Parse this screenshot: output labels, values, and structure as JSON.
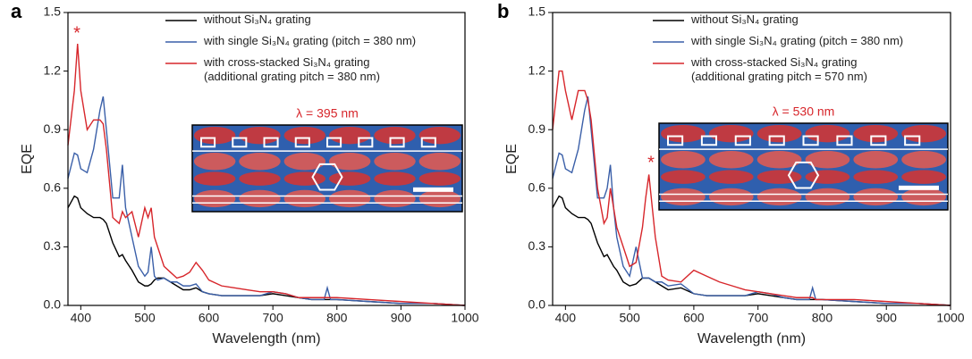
{
  "chart_data": [
    {
      "type": "line",
      "panel": "a",
      "xlabel": "Wavelength (nm)",
      "ylabel": "EQE",
      "xlim": [
        380,
        1000
      ],
      "ylim": [
        0,
        1.5
      ],
      "xticks": [
        400,
        500,
        600,
        700,
        800,
        900,
        1000
      ],
      "yticks": [
        {
          "value": 0,
          "label": "0.0"
        },
        0.3,
        0.6,
        0.9,
        1.2,
        1.5
      ],
      "annotations": [
        "*",
        "λ = 395 nm"
      ],
      "x": [
        380,
        390,
        395,
        400,
        410,
        420,
        430,
        435,
        440,
        450,
        460,
        465,
        470,
        480,
        490,
        500,
        505,
        510,
        515,
        520,
        530,
        540,
        550,
        560,
        570,
        580,
        590,
        600,
        620,
        640,
        660,
        680,
        700,
        720,
        740,
        760,
        780,
        785,
        790,
        800,
        850,
        900,
        950,
        1000
      ],
      "series": [
        {
          "name": "without Si₃N₄ grating",
          "color": "#000000",
          "values": [
            0.5,
            0.56,
            0.55,
            0.5,
            0.47,
            0.45,
            0.45,
            0.44,
            0.42,
            0.32,
            0.25,
            0.26,
            0.23,
            0.18,
            0.12,
            0.1,
            0.1,
            0.11,
            0.13,
            0.14,
            0.14,
            0.12,
            0.1,
            0.08,
            0.08,
            0.09,
            0.07,
            0.06,
            0.05,
            0.05,
            0.05,
            0.05,
            0.06,
            0.05,
            0.04,
            0.03,
            0.03,
            0.03,
            0.03,
            0.03,
            0.02,
            0.01,
            0.01,
            0.0
          ]
        },
        {
          "name": "with single Si₃N₄ grating (pitch = 380 nm)",
          "color": "#3a5fa8",
          "values": [
            0.65,
            0.78,
            0.77,
            0.7,
            0.68,
            0.8,
            1.0,
            1.07,
            0.9,
            0.55,
            0.55,
            0.72,
            0.5,
            0.35,
            0.2,
            0.15,
            0.17,
            0.3,
            0.15,
            0.13,
            0.14,
            0.12,
            0.12,
            0.1,
            0.1,
            0.11,
            0.07,
            0.06,
            0.05,
            0.05,
            0.05,
            0.05,
            0.07,
            0.06,
            0.04,
            0.03,
            0.03,
            0.09,
            0.03,
            0.03,
            0.02,
            0.01,
            0.01,
            0.0
          ]
        },
        {
          "name": "with cross-stacked Si₃N₄ grating\n(additional grating pitch = 380 nm)",
          "color": "#d7262b",
          "values": [
            0.82,
            1.1,
            1.34,
            1.1,
            0.9,
            0.95,
            0.95,
            0.93,
            0.8,
            0.45,
            0.42,
            0.48,
            0.45,
            0.48,
            0.35,
            0.5,
            0.45,
            0.5,
            0.35,
            0.3,
            0.2,
            0.17,
            0.14,
            0.15,
            0.17,
            0.22,
            0.18,
            0.13,
            0.1,
            0.09,
            0.08,
            0.07,
            0.07,
            0.06,
            0.04,
            0.04,
            0.04,
            0.04,
            0.04,
            0.04,
            0.03,
            0.02,
            0.01,
            0.0
          ]
        }
      ]
    },
    {
      "type": "line",
      "panel": "b",
      "xlabel": "Wavelength (nm)",
      "ylabel": "EQE",
      "xlim": [
        380,
        1000
      ],
      "ylim": [
        0,
        1.5
      ],
      "xticks": [
        400,
        500,
        600,
        700,
        800,
        900,
        1000
      ],
      "yticks": [
        {
          "value": 0,
          "label": "0.0"
        },
        0.3,
        0.6,
        0.9,
        1.2,
        1.5
      ],
      "annotations": [
        "*",
        "λ = 530 nm"
      ],
      "x": [
        380,
        390,
        395,
        400,
        410,
        420,
        430,
        435,
        440,
        450,
        460,
        465,
        470,
        475,
        480,
        490,
        500,
        510,
        520,
        525,
        530,
        540,
        550,
        560,
        580,
        600,
        620,
        640,
        660,
        680,
        700,
        720,
        740,
        760,
        780,
        785,
        790,
        800,
        850,
        900,
        950,
        1000
      ],
      "series": [
        {
          "name": "without Si₃N₄ grating",
          "color": "#000000",
          "values": [
            0.5,
            0.56,
            0.55,
            0.5,
            0.47,
            0.45,
            0.45,
            0.44,
            0.42,
            0.32,
            0.25,
            0.26,
            0.23,
            0.2,
            0.18,
            0.12,
            0.1,
            0.11,
            0.14,
            0.14,
            0.14,
            0.12,
            0.1,
            0.08,
            0.09,
            0.06,
            0.05,
            0.05,
            0.05,
            0.05,
            0.06,
            0.05,
            0.04,
            0.03,
            0.03,
            0.03,
            0.03,
            0.03,
            0.02,
            0.01,
            0.01,
            0.0
          ]
        },
        {
          "name": "with single Si₃N₄ grating (pitch = 380 nm)",
          "color": "#3a5fa8",
          "values": [
            0.65,
            0.78,
            0.77,
            0.7,
            0.68,
            0.8,
            1.0,
            1.07,
            0.9,
            0.55,
            0.55,
            0.6,
            0.72,
            0.5,
            0.35,
            0.2,
            0.15,
            0.3,
            0.14,
            0.14,
            0.14,
            0.12,
            0.12,
            0.1,
            0.11,
            0.06,
            0.05,
            0.05,
            0.05,
            0.05,
            0.07,
            0.06,
            0.04,
            0.03,
            0.03,
            0.09,
            0.03,
            0.03,
            0.02,
            0.01,
            0.01,
            0.0
          ]
        },
        {
          "name": "with cross-stacked Si₃N₄ grating\n(additional grating pitch = 570 nm)",
          "color": "#d7262b",
          "values": [
            0.9,
            1.2,
            1.2,
            1.1,
            0.95,
            1.1,
            1.1,
            1.05,
            0.95,
            0.6,
            0.42,
            0.45,
            0.6,
            0.5,
            0.4,
            0.3,
            0.2,
            0.22,
            0.4,
            0.55,
            0.67,
            0.35,
            0.15,
            0.13,
            0.12,
            0.18,
            0.15,
            0.12,
            0.1,
            0.08,
            0.07,
            0.06,
            0.05,
            0.04,
            0.04,
            0.04,
            0.03,
            0.03,
            0.03,
            0.02,
            0.01,
            0.0
          ]
        }
      ]
    }
  ]
}
